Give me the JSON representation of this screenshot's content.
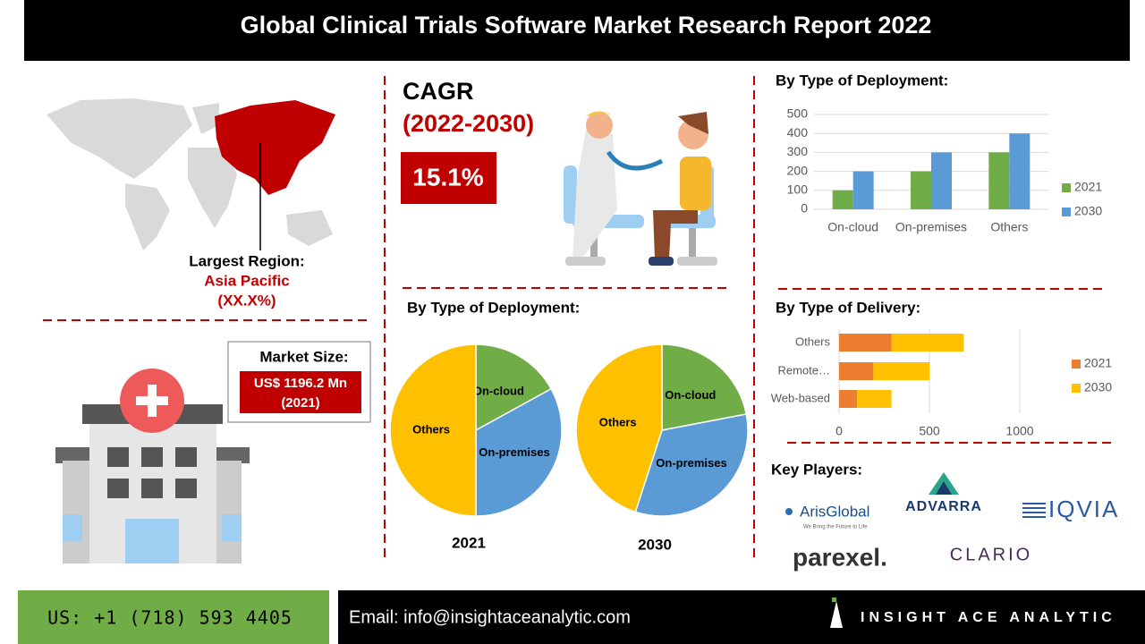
{
  "header": {
    "title": "Global Clinical Trials Software Market Research Report 2022"
  },
  "region": {
    "label": "Largest Region:",
    "name": "Asia Pacific",
    "share": "(XX.X%)"
  },
  "cagr": {
    "title": "CAGR",
    "period": "(2022-2030)",
    "value": "15.1%"
  },
  "market_size": {
    "label": "Market Size:",
    "value": "US$ 1196.2 Mn",
    "year": "(2021)"
  },
  "deployment_share": {
    "title": "By Type of Deployment:"
  },
  "chart_data": [
    {
      "type": "bar",
      "title": "By Type of Deployment:",
      "categories": [
        "On-cloud",
        "On-premises",
        "Others"
      ],
      "series": [
        {
          "name": "2021",
          "color": "#70ad47",
          "values": [
            100,
            200,
            300
          ]
        },
        {
          "name": "2030",
          "color": "#5b9bd5",
          "values": [
            200,
            300,
            400
          ]
        }
      ],
      "ylim": [
        0,
        500
      ],
      "yticks": [
        0,
        100,
        200,
        300,
        400,
        500
      ],
      "grid": true,
      "legend": "right"
    },
    {
      "type": "pie",
      "title": "2021",
      "categories": [
        "On-cloud",
        "On-premises",
        "Others"
      ],
      "values": [
        17,
        33,
        50
      ],
      "colors": [
        "#70ad47",
        "#5b9bd5",
        "#ffc000"
      ]
    },
    {
      "type": "pie",
      "title": "2030",
      "categories": [
        "On-cloud",
        "On-premises",
        "Others"
      ],
      "values": [
        22,
        33,
        45
      ],
      "colors": [
        "#70ad47",
        "#5b9bd5",
        "#ffc000"
      ]
    },
    {
      "type": "hbar",
      "title": "By Type of Delivery:",
      "categories": [
        "Others",
        "Remote…",
        "Web-based"
      ],
      "stacked": true,
      "series": [
        {
          "name": "2021",
          "color": "#ed7d31",
          "values": [
            290,
            190,
            100
          ]
        },
        {
          "name": "2030",
          "color": "#ffc000",
          "values": [
            400,
            310,
            190
          ]
        }
      ],
      "xlim": [
        0,
        1000
      ],
      "xticks": [
        0,
        500,
        1000
      ],
      "grid": true,
      "legend": "right"
    }
  ],
  "key_players": {
    "title": "Key Players:",
    "players": [
      "ArisGlobal",
      "ADVARRA",
      "IQVIA",
      "parexel.",
      "CLARIO"
    ],
    "arisglobal_tagline": "We Bring the Future to Life"
  },
  "footer": {
    "phone": "US: +1 (718) 593 4405",
    "email": "Email: info@insightaceanalytic.com",
    "brand": "INSIGHT ACE ANALYTIC"
  }
}
